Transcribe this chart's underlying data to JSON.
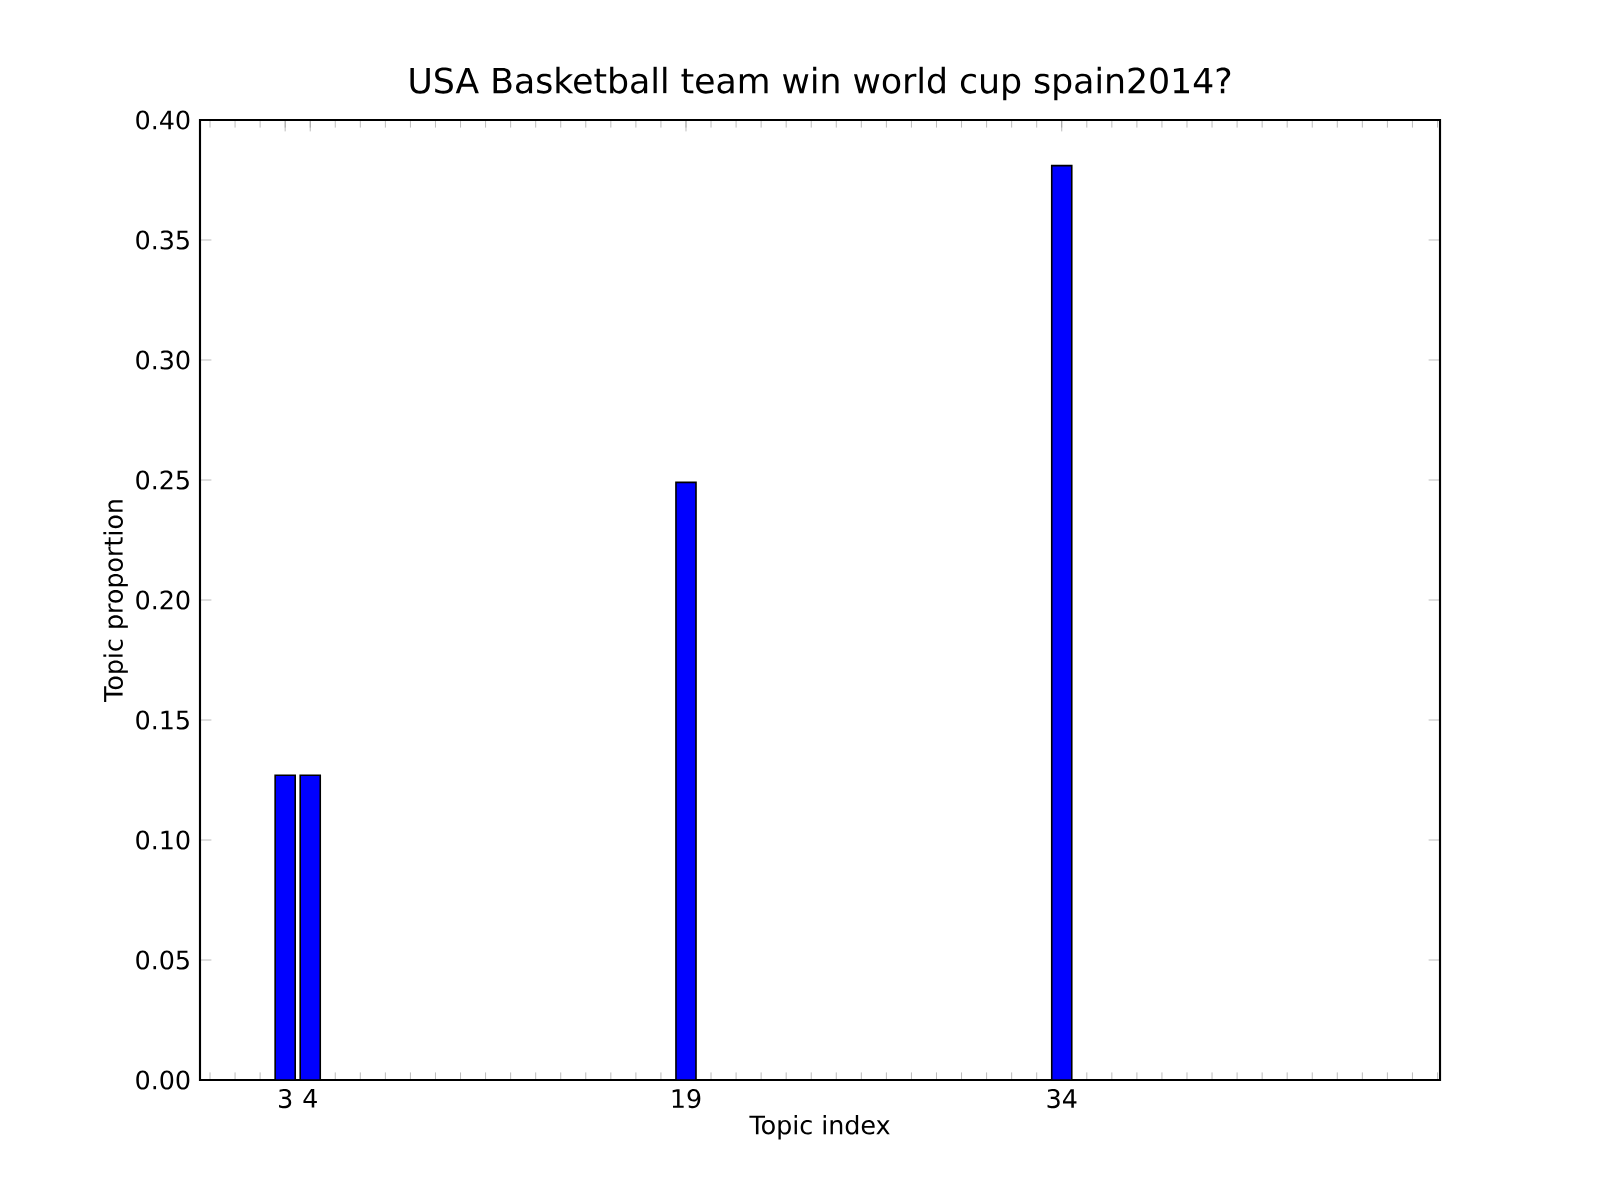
{
  "chart_data": {
    "type": "bar",
    "title": "USA Basketball team win world cup spain2014?",
    "xlabel": "Topic index",
    "ylabel": "Topic proportion",
    "x": [
      3,
      4,
      19,
      34
    ],
    "values": [
      0.127,
      0.127,
      0.249,
      0.381
    ],
    "color": "#0000ff",
    "xlim": [
      -0.4,
      49.1
    ],
    "xticks": [
      3,
      4,
      19,
      34
    ],
    "ylim": [
      0,
      0.4
    ],
    "yticks": [
      {
        "value": 0,
        "label": "0.00"
      },
      {
        "value": 0.05,
        "label": "0.05"
      },
      {
        "value": 0.1,
        "label": "0.10"
      },
      {
        "value": 0.15,
        "label": "0.15"
      },
      {
        "value": 0.2,
        "label": "0.20"
      },
      {
        "value": 0.25,
        "label": "0.25"
      },
      {
        "value": 0.3,
        "label": "0.30"
      },
      {
        "value": 0.35,
        "label": "0.35"
      },
      {
        "value": 0.4,
        "label": "0.40"
      }
    ],
    "grid": false
  }
}
